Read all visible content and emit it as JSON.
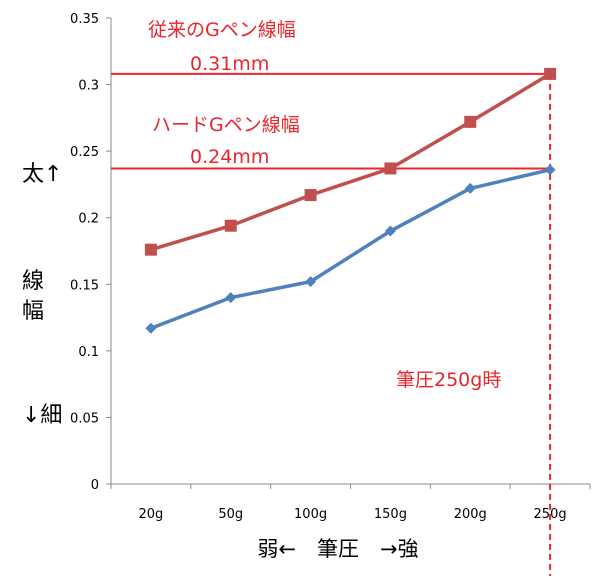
{
  "chart_data": {
    "type": "line",
    "categories": [
      "20g",
      "50g",
      "100g",
      "150g",
      "200g",
      "250g"
    ],
    "series": [
      {
        "name": "",
        "values": [
          0.117,
          0.14,
          0.152,
          0.19,
          0.222,
          0.236
        ],
        "color": "#4f81bd",
        "marker": "diamond"
      },
      {
        "name": "",
        "values": [
          0.176,
          0.194,
          0.217,
          0.237,
          0.272,
          0.308
        ],
        "color": "#c0504d",
        "marker": "square"
      }
    ],
    "ylim": [
      0,
      0.35
    ],
    "yticks": [
      "0",
      "0.05",
      "0.1",
      "0.15",
      "0.2",
      "0.25",
      "0.3",
      "0.35"
    ],
    "grid": false,
    "reference_lines": {
      "color": "#e8262c",
      "h1": 0.308,
      "h2": 0.237,
      "v_category": "250g"
    },
    "annotations": {
      "a1_line1": "従来のGペン線幅",
      "a1_line2": "0.31mm",
      "a2_line1": "ハードGペン線幅",
      "a2_line2": "0.24mm",
      "a3": "筆圧250g時"
    },
    "ylabel_lines": [
      "太↑",
      "線",
      "幅",
      "↓細"
    ],
    "xlabel": "弱←　筆圧　→強"
  }
}
